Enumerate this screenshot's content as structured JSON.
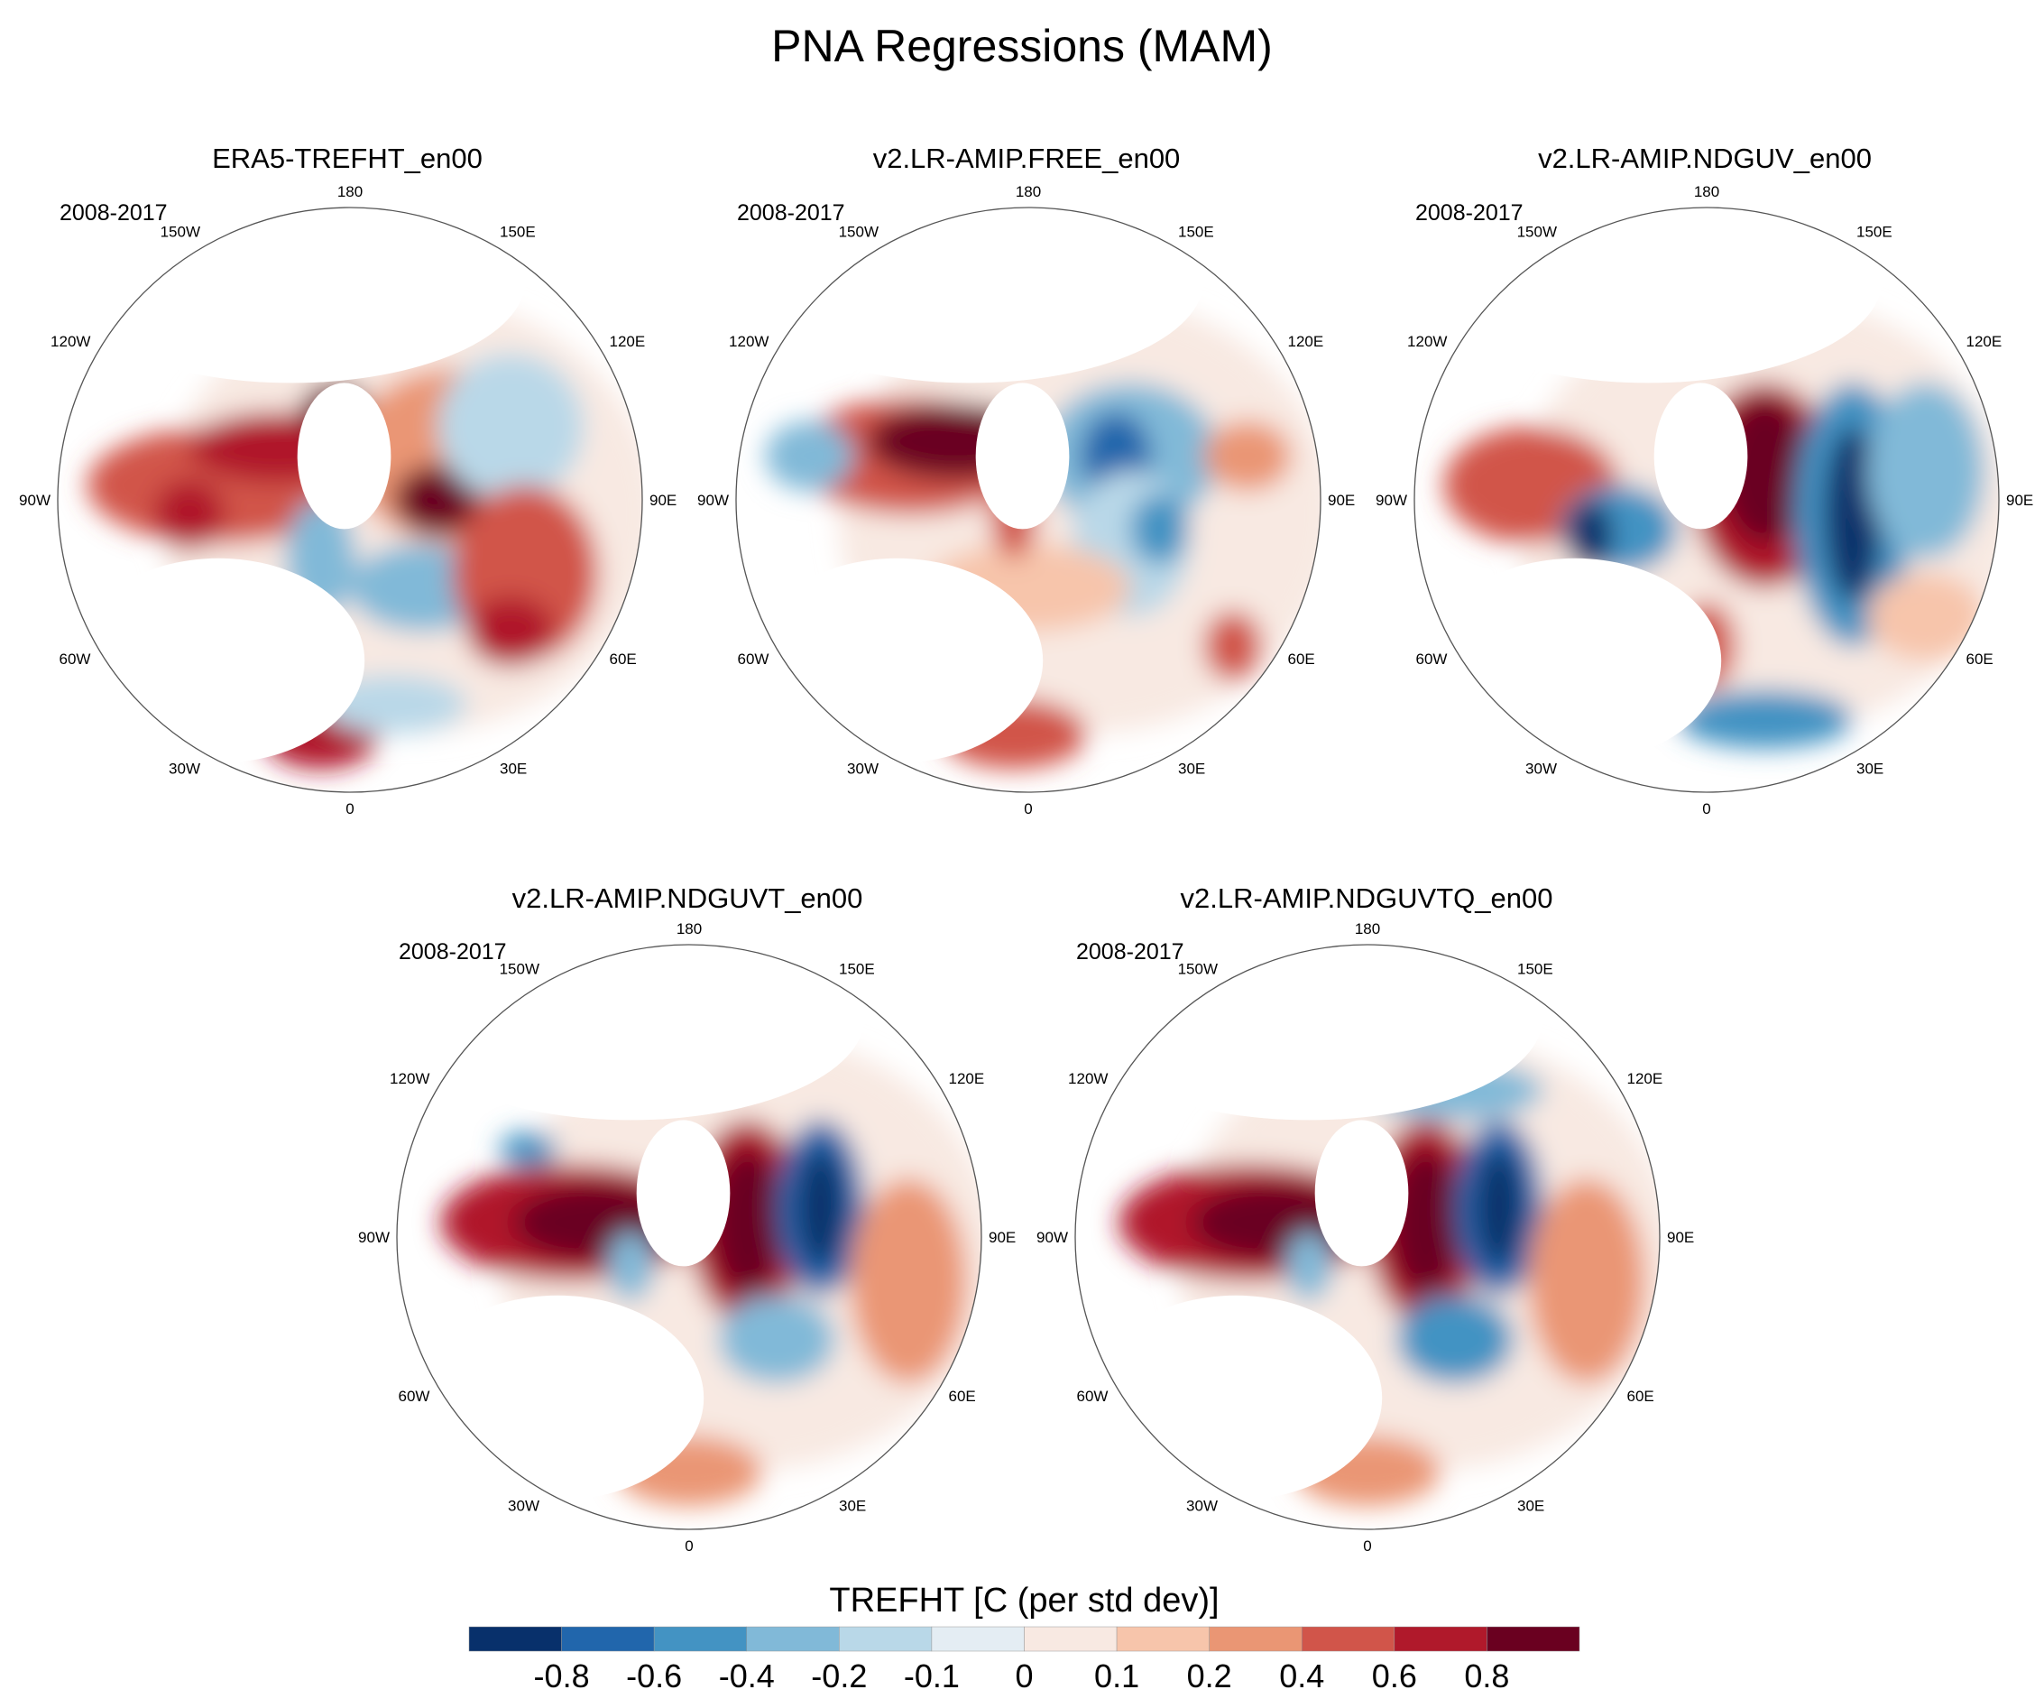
{
  "title": "PNA Regressions (MAM)",
  "lon_labels": [
    "180",
    "150E",
    "120E",
    "90E",
    "60E",
    "30E",
    "0",
    "30W",
    "60W",
    "90W",
    "120W",
    "150W"
  ],
  "panels": [
    {
      "title": "ERA5-TREFHT_en00",
      "period": "2008-2017"
    },
    {
      "title": "v2.LR-AMIP.FREE_en00",
      "period": "2008-2017"
    },
    {
      "title": "v2.LR-AMIP.NDGUV_en00",
      "period": "2008-2017"
    },
    {
      "title": "v2.LR-AMIP.NDGUVT_en00",
      "period": "2008-2017"
    },
    {
      "title": "v2.LR-AMIP.NDGUVTQ_en00",
      "period": "2008-2017"
    }
  ],
  "chart_data": {
    "type": "heatmap",
    "projection": "north-polar-stereographic",
    "colorbar": {
      "title": "TREFHT [C (per std dev)]",
      "levels": [
        "-0.8",
        "-0.6",
        "-0.4",
        "-0.2",
        "-0.1",
        "0",
        "0.1",
        "0.2",
        "0.4",
        "0.6",
        "0.8"
      ],
      "colors": [
        "#08306b",
        "#2166ac",
        "#4393c3",
        "#81b9d8",
        "#b9d8e8",
        "#e4edf3",
        "#f8e9e2",
        "#f7c5ab",
        "#ea9674",
        "#d1554a",
        "#b0192b",
        "#6a0020"
      ]
    }
  }
}
